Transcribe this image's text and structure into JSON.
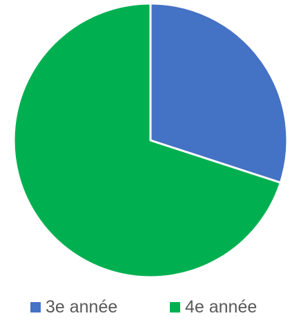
{
  "chart_data": {
    "type": "pie",
    "title": "",
    "start_angle_deg": 0,
    "direction": "clockwise",
    "legend_position": "bottom",
    "slices": [
      {
        "label": "3e année",
        "value": 30,
        "color": "#4472C4"
      },
      {
        "label": "4e année",
        "value": 70,
        "color": "#00B050"
      }
    ]
  }
}
